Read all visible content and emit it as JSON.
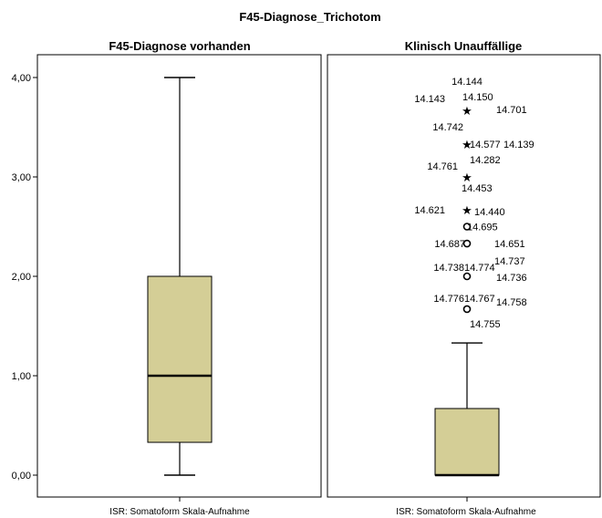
{
  "chart_data": {
    "type": "boxplot",
    "title": "F45-Diagnose_Trichotom",
    "ylim": [
      -0.2,
      4.3
    ],
    "y_ticks": [
      "0,00",
      "1,00",
      "2,00",
      "3,00",
      "4,00"
    ],
    "panels": [
      {
        "title": "F45-Diagnose vorhanden",
        "xlabel": "ISR: Somatoform Skala-Aufnahme",
        "box": {
          "whisker_low": 0.0,
          "q1": 0.33,
          "median": 1.0,
          "q3": 2.0,
          "whisker_high": 4.0
        },
        "outliers": []
      },
      {
        "title": "Klinisch Unauffällige",
        "xlabel": "ISR: Somatoform Skala-Aufnahme",
        "box": {
          "whisker_low": 0.0,
          "q1": 0.0,
          "median": 0.0,
          "q3": 0.67,
          "whisker_high": 1.33
        },
        "outliers": [
          {
            "y": 3.67,
            "type": "extreme",
            "labels": [
              "14.144",
              "14.143",
              "14.150",
              "14.701"
            ]
          },
          {
            "y": 3.33,
            "type": "extreme",
            "labels": [
              "14.742",
              "14.577",
              "14.139"
            ]
          },
          {
            "y": 3.0,
            "type": "extreme",
            "labels": [
              "14.761",
              "14.282"
            ]
          },
          {
            "y": 2.67,
            "type": "extreme",
            "labels": [
              "14.453",
              "14.621",
              "14.440"
            ]
          },
          {
            "y": 2.5,
            "type": "outlier",
            "labels": [
              "14.695"
            ]
          },
          {
            "y": 2.33,
            "type": "outlier",
            "labels": [
              "14.687",
              "14.651"
            ]
          },
          {
            "y": 2.0,
            "type": "outlier",
            "labels": [
              "14.738",
              "14.774",
              "14.737",
              "14.736"
            ]
          },
          {
            "y": 1.67,
            "type": "outlier",
            "labels": [
              "14.776",
              "14.767",
              "14.758",
              "14.755"
            ]
          }
        ]
      }
    ]
  },
  "colors": {
    "box_fill": "#d4ce96",
    "line": "#000000",
    "background": "#ffffff"
  }
}
